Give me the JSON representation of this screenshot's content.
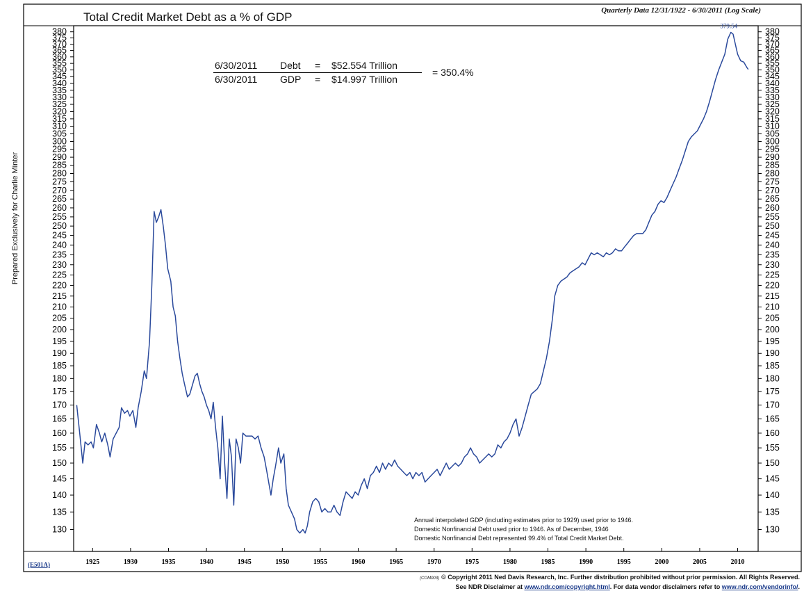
{
  "header": {
    "title": "Total Credit Market Debt as a % of GDP",
    "subtitle": "Quarterly Data 12/31/1922 - 6/30/2011 (Log Scale)"
  },
  "side_label": "Prepared Exclusively for Charlie Minter",
  "chart_code": "(E501A)",
  "formula": {
    "debt_date": "6/30/2011",
    "debt_label": "Debt",
    "equals": "=",
    "debt_value": "$52.554 Trillion",
    "gdp_date": "6/30/2011",
    "gdp_label": "GDP",
    "gdp_value": "$14.997 Trillion",
    "result": "= 350.4%"
  },
  "notes": [
    "Annual interpolated GDP (including estimates prior to 1929) used prior to 1946.",
    "Domestic Nonfinancial Debt used prior to 1946. As of December, 1946",
    "Domestic Nonfinancial Debt represented 99.4% of Total Credit Market Debt."
  ],
  "footer": {
    "tag": "(COM003)",
    "line1": "© Copyright 2011 Ned Davis Research, Inc. Further distribution prohibited without prior permission. All Rights Reserved.",
    "line2_pre": "See NDR Disclaimer at",
    "line2_link1": "www.ndr.com/copyright.html",
    "line2_mid": ". For data vendor disclaimers refer to",
    "line2_link2": "www.ndr.com/vendorinfo/",
    "line2_end": "."
  },
  "colors": {
    "line": "#2b4a9c",
    "frame": "#000000",
    "link": "#1a3a8a"
  },
  "chart_data": {
    "type": "line",
    "title": "Total Credit Market Debt as a % of GDP",
    "subtitle": "Quarterly Data 12/31/1922 - 6/30/2011 (Log Scale)",
    "scale": "log",
    "xlim": [
      1922.5,
      2012.7
    ],
    "ylim": [
      124,
      385
    ],
    "x_ticks": [
      1925,
      1930,
      1935,
      1940,
      1945,
      1950,
      1955,
      1960,
      1965,
      1970,
      1975,
      1980,
      1985,
      1990,
      1995,
      2000,
      2005,
      2010
    ],
    "y_ticks": [
      130,
      135,
      140,
      145,
      150,
      155,
      160,
      165,
      170,
      175,
      180,
      185,
      190,
      195,
      200,
      205,
      210,
      215,
      220,
      225,
      230,
      235,
      240,
      245,
      250,
      255,
      260,
      265,
      270,
      275,
      280,
      285,
      290,
      295,
      300,
      305,
      310,
      315,
      320,
      325,
      330,
      335,
      340,
      345,
      350,
      355,
      360,
      365,
      370,
      375,
      380
    ],
    "grid": false,
    "peak_label": {
      "text": "379.54",
      "x": 2009.2,
      "y": 379.54
    },
    "series": [
      {
        "points": [
          [
            1922.9,
            170
          ],
          [
            1923.3,
            160
          ],
          [
            1923.7,
            150
          ],
          [
            1924.0,
            157
          ],
          [
            1924.4,
            156
          ],
          [
            1924.8,
            157
          ],
          [
            1925.1,
            155
          ],
          [
            1925.5,
            163
          ],
          [
            1925.9,
            160
          ],
          [
            1926.2,
            157
          ],
          [
            1926.6,
            160
          ],
          [
            1927.0,
            156
          ],
          [
            1927.3,
            152
          ],
          [
            1927.7,
            158
          ],
          [
            1928.1,
            160
          ],
          [
            1928.5,
            162
          ],
          [
            1928.8,
            169
          ],
          [
            1929.2,
            167
          ],
          [
            1929.6,
            168
          ],
          [
            1929.9,
            166
          ],
          [
            1930.3,
            168
          ],
          [
            1930.7,
            162
          ],
          [
            1931.0,
            169
          ],
          [
            1931.4,
            175
          ],
          [
            1931.8,
            183
          ],
          [
            1932.1,
            180
          ],
          [
            1932.5,
            195
          ],
          [
            1932.8,
            220
          ],
          [
            1933.1,
            258
          ],
          [
            1933.4,
            252
          ],
          [
            1933.7,
            255
          ],
          [
            1934.0,
            259
          ],
          [
            1934.3,
            250
          ],
          [
            1934.6,
            240
          ],
          [
            1934.9,
            228
          ],
          [
            1935.3,
            222
          ],
          [
            1935.6,
            210
          ],
          [
            1935.9,
            206
          ],
          [
            1936.2,
            195
          ],
          [
            1936.5,
            188
          ],
          [
            1936.8,
            182
          ],
          [
            1937.1,
            178
          ],
          [
            1937.5,
            173
          ],
          [
            1937.8,
            174
          ],
          [
            1938.1,
            177
          ],
          [
            1938.5,
            181
          ],
          [
            1938.8,
            182
          ],
          [
            1939.1,
            178
          ],
          [
            1939.4,
            175
          ],
          [
            1939.7,
            173
          ],
          [
            1940.0,
            170
          ],
          [
            1940.3,
            168
          ],
          [
            1940.6,
            165
          ],
          [
            1940.9,
            171
          ],
          [
            1941.2,
            162
          ],
          [
            1941.5,
            155
          ],
          [
            1941.8,
            145
          ],
          [
            1942.1,
            166
          ],
          [
            1942.4,
            150
          ],
          [
            1942.7,
            139
          ],
          [
            1943.0,
            158
          ],
          [
            1943.3,
            152
          ],
          [
            1943.6,
            137
          ],
          [
            1943.9,
            158
          ],
          [
            1944.2,
            155
          ],
          [
            1944.5,
            150
          ],
          [
            1944.8,
            160
          ],
          [
            1945.2,
            159
          ],
          [
            1945.6,
            159
          ],
          [
            1946.0,
            159
          ],
          [
            1946.4,
            158
          ],
          [
            1946.8,
            159
          ],
          [
            1947.2,
            155
          ],
          [
            1947.6,
            152
          ],
          [
            1947.9,
            148
          ],
          [
            1948.2,
            144
          ],
          [
            1948.5,
            140
          ],
          [
            1948.8,
            145
          ],
          [
            1949.1,
            149
          ],
          [
            1949.5,
            155
          ],
          [
            1949.8,
            150
          ],
          [
            1950.2,
            153
          ],
          [
            1950.5,
            142
          ],
          [
            1950.8,
            137
          ],
          [
            1951.2,
            135
          ],
          [
            1951.6,
            133
          ],
          [
            1951.9,
            130
          ],
          [
            1952.3,
            129
          ],
          [
            1952.7,
            130
          ],
          [
            1953.0,
            129
          ],
          [
            1953.3,
            131
          ],
          [
            1953.6,
            135
          ],
          [
            1954.0,
            138
          ],
          [
            1954.4,
            139
          ],
          [
            1954.8,
            138
          ],
          [
            1955.2,
            135
          ],
          [
            1955.6,
            136
          ],
          [
            1956.0,
            135
          ],
          [
            1956.4,
            135
          ],
          [
            1956.8,
            137
          ],
          [
            1957.2,
            135
          ],
          [
            1957.6,
            134
          ],
          [
            1958.0,
            138
          ],
          [
            1958.4,
            141
          ],
          [
            1958.8,
            140
          ],
          [
            1959.2,
            139
          ],
          [
            1959.6,
            141
          ],
          [
            1960.0,
            140
          ],
          [
            1960.4,
            143
          ],
          [
            1960.8,
            145
          ],
          [
            1961.2,
            142
          ],
          [
            1961.6,
            146
          ],
          [
            1962.0,
            147
          ],
          [
            1962.4,
            149
          ],
          [
            1962.8,
            147
          ],
          [
            1963.2,
            150
          ],
          [
            1963.6,
            148
          ],
          [
            1964.0,
            150
          ],
          [
            1964.4,
            149
          ],
          [
            1964.8,
            151
          ],
          [
            1965.2,
            149
          ],
          [
            1965.6,
            148
          ],
          [
            1966.0,
            147
          ],
          [
            1966.4,
            146
          ],
          [
            1966.8,
            147
          ],
          [
            1967.2,
            145
          ],
          [
            1967.6,
            147
          ],
          [
            1968.0,
            146
          ],
          [
            1968.4,
            147
          ],
          [
            1968.8,
            144
          ],
          [
            1969.2,
            145
          ],
          [
            1969.6,
            146
          ],
          [
            1970.0,
            147
          ],
          [
            1970.4,
            148
          ],
          [
            1970.8,
            146
          ],
          [
            1971.2,
            148
          ],
          [
            1971.6,
            150
          ],
          [
            1972.0,
            148
          ],
          [
            1972.4,
            149
          ],
          [
            1972.8,
            150
          ],
          [
            1973.2,
            149
          ],
          [
            1973.6,
            150
          ],
          [
            1974.0,
            152
          ],
          [
            1974.4,
            153
          ],
          [
            1974.8,
            155
          ],
          [
            1975.2,
            153
          ],
          [
            1975.6,
            152
          ],
          [
            1976.0,
            150
          ],
          [
            1976.4,
            151
          ],
          [
            1976.8,
            152
          ],
          [
            1977.2,
            153
          ],
          [
            1977.6,
            152
          ],
          [
            1978.0,
            153
          ],
          [
            1978.4,
            156
          ],
          [
            1978.8,
            155
          ],
          [
            1979.2,
            157
          ],
          [
            1979.6,
            158
          ],
          [
            1980.0,
            160
          ],
          [
            1980.4,
            163
          ],
          [
            1980.8,
            165
          ],
          [
            1981.2,
            159
          ],
          [
            1981.6,
            162
          ],
          [
            1982.0,
            166
          ],
          [
            1982.4,
            170
          ],
          [
            1982.8,
            174
          ],
          [
            1983.2,
            175
          ],
          [
            1983.6,
            176
          ],
          [
            1984.0,
            178
          ],
          [
            1984.4,
            183
          ],
          [
            1984.8,
            188
          ],
          [
            1985.2,
            195
          ],
          [
            1985.6,
            205
          ],
          [
            1985.9,
            215
          ],
          [
            1986.3,
            220
          ],
          [
            1986.7,
            222
          ],
          [
            1987.1,
            223
          ],
          [
            1987.5,
            224
          ],
          [
            1987.9,
            226
          ],
          [
            1988.3,
            227
          ],
          [
            1988.7,
            228
          ],
          [
            1989.1,
            229
          ],
          [
            1989.5,
            231
          ],
          [
            1989.9,
            230
          ],
          [
            1990.3,
            233
          ],
          [
            1990.7,
            236
          ],
          [
            1991.1,
            235
          ],
          [
            1991.5,
            236
          ],
          [
            1991.9,
            235
          ],
          [
            1992.3,
            234
          ],
          [
            1992.7,
            236
          ],
          [
            1993.1,
            235
          ],
          [
            1993.5,
            236
          ],
          [
            1993.9,
            238
          ],
          [
            1994.3,
            237
          ],
          [
            1994.7,
            237
          ],
          [
            1995.1,
            239
          ],
          [
            1995.5,
            241
          ],
          [
            1995.9,
            243
          ],
          [
            1996.3,
            245
          ],
          [
            1996.7,
            246
          ],
          [
            1997.1,
            246
          ],
          [
            1997.5,
            246
          ],
          [
            1997.9,
            248
          ],
          [
            1998.3,
            252
          ],
          [
            1998.7,
            256
          ],
          [
            1999.1,
            258
          ],
          [
            1999.5,
            262
          ],
          [
            1999.9,
            264
          ],
          [
            2000.3,
            263
          ],
          [
            2000.7,
            266
          ],
          [
            2001.1,
            270
          ],
          [
            2001.5,
            274
          ],
          [
            2001.9,
            278
          ],
          [
            2002.3,
            283
          ],
          [
            2002.7,
            288
          ],
          [
            2003.1,
            294
          ],
          [
            2003.5,
            300
          ],
          [
            2003.9,
            303
          ],
          [
            2004.3,
            305
          ],
          [
            2004.7,
            307
          ],
          [
            2005.1,
            311
          ],
          [
            2005.5,
            315
          ],
          [
            2005.9,
            320
          ],
          [
            2006.3,
            327
          ],
          [
            2006.7,
            335
          ],
          [
            2007.1,
            343
          ],
          [
            2007.5,
            350
          ],
          [
            2007.9,
            356
          ],
          [
            2008.3,
            362
          ],
          [
            2008.7,
            374
          ],
          [
            2009.1,
            379.54
          ],
          [
            2009.4,
            378
          ],
          [
            2009.7,
            370
          ],
          [
            2010.0,
            362
          ],
          [
            2010.4,
            357
          ],
          [
            2010.8,
            356
          ],
          [
            2011.2,
            352
          ],
          [
            2011.4,
            350.4
          ]
        ]
      }
    ]
  }
}
